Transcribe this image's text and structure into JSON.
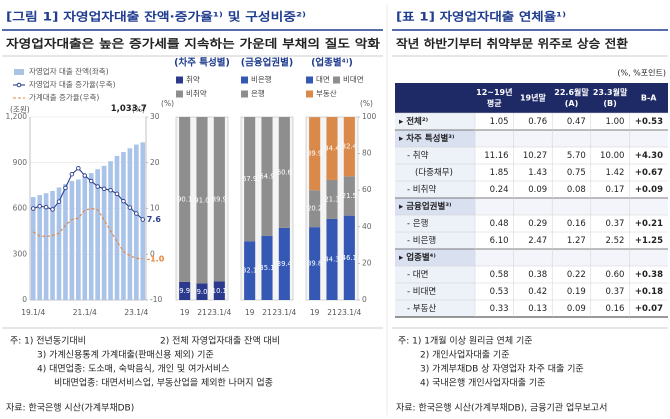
{
  "header_left": {
    "title": "[그림 1] 자영업자대출 잔액·증가율¹⁾ 및 구성비중²⁾",
    "subtitle": "자영업자대출은 높은 증가세를 지속하는 가운데 부채의 질도 악화"
  },
  "chart_data": [
    {
      "type": "bar_line",
      "ylabel": "(조원)",
      "y2label": "(%)",
      "categories": [
        "19.1/4",
        null,
        null,
        null,
        null,
        null,
        null,
        null,
        "21.1/4",
        null,
        null,
        null,
        null,
        null,
        null,
        null,
        "23.1/4",
        null
      ],
      "series": [
        {
          "name": "자영업자 대출 잔액(좌축)",
          "type": "bar",
          "color": "#a9c4e8",
          "values": [
            675,
            688,
            700,
            715,
            738,
            760,
            780,
            790,
            812,
            832,
            858,
            880,
            910,
            945,
            970,
            995,
            1019,
            1033.7
          ],
          "value_labels": [
            null,
            null,
            null,
            null,
            null,
            null,
            null,
            null,
            null,
            null,
            null,
            null,
            null,
            null,
            null,
            null,
            null,
            "1,033.7"
          ]
        },
        {
          "name": "자영업자 대출 증가율(우축)",
          "type": "line",
          "marker": "circle",
          "axis": "y2",
          "color": "#2e3f8f",
          "values": [
            10.0,
            10.5,
            10.3,
            9.8,
            11.5,
            14.5,
            17.5,
            18.8,
            17.2,
            16.0,
            14.8,
            14.3,
            14.0,
            13.2,
            11.6,
            10.2,
            8.9,
            7.6
          ],
          "value_labels": [
            null,
            null,
            null,
            null,
            null,
            null,
            null,
            null,
            null,
            null,
            null,
            null,
            null,
            null,
            null,
            null,
            null,
            "7.6"
          ]
        },
        {
          "name": "가계대출 증가율(우축)",
          "type": "line",
          "dashed": true,
          "axis": "y2",
          "color": "#e8833a",
          "values": [
            4.9,
            4.0,
            3.9,
            4.1,
            4.6,
            6.3,
            7.6,
            7.9,
            9.6,
            10.0,
            9.7,
            7.5,
            5.1,
            2.8,
            0.6,
            -0.3,
            -0.9,
            -1.0
          ],
          "value_labels": [
            null,
            null,
            null,
            null,
            null,
            null,
            null,
            null,
            null,
            null,
            null,
            null,
            null,
            null,
            null,
            null,
            null,
            "-1.0"
          ]
        }
      ],
      "ylim": [
        0,
        1200
      ],
      "yticks": [
        0,
        300,
        600,
        900,
        {
          "value": 1200,
          "label": "1,200"
        }
      ],
      "y2lim": [
        -10,
        30
      ],
      "y2ticks": [
        -10,
        0,
        10,
        20,
        30
      ],
      "grid": true
    },
    {
      "type": "stacked_bar",
      "title": "(차주 특성별)",
      "ylabel": "(%)",
      "categories": [
        "19",
        "21",
        "23.1/4"
      ],
      "series": [
        {
          "name": "취약",
          "color": "#2b3a8c",
          "values": [
            9.9,
            9.0,
            10.1
          ],
          "value_labels": [
            "9.9",
            "9.0",
            "10.1"
          ]
        },
        {
          "name": "비취약",
          "color": "#8e8e8e",
          "values": [
            90.1,
            91.0,
            89.9
          ],
          "value_labels": [
            "90.1",
            "91.0",
            "89.9"
          ]
        }
      ],
      "ylim": [
        0,
        100
      ]
    },
    {
      "type": "stacked_bar",
      "title": "(금융업권별)",
      "categories": [
        "19",
        "21",
        "23.1/4"
      ],
      "series": [
        {
          "name": "비은행",
          "color": "#3558b4",
          "values": [
            32.1,
            35.1,
            39.4
          ]
        },
        {
          "name": "은행",
          "color": "#8e8e8e",
          "values": [
            67.9,
            64.9,
            60.6
          ]
        }
      ],
      "ylim": [
        0,
        100
      ]
    },
    {
      "type": "stacked_bar",
      "title": "(업종별⁴⁾)",
      "ylabel": "(%)",
      "categories": [
        "19",
        "21",
        "23.1/4"
      ],
      "series": [
        {
          "name": "대면",
          "color": "#3558b4",
          "values": [
            39.8,
            44.3,
            46.1
          ]
        },
        {
          "name": "비대면",
          "color": "#8e8e8e",
          "values": [
            20.2,
            21.3,
            21.5
          ]
        },
        {
          "name": "부동산",
          "color": "#d9894a",
          "values": [
            39.9,
            34.4,
            32.4
          ]
        }
      ],
      "ylim": [
        0,
        100
      ],
      "yticks": [
        0,
        20,
        40,
        60,
        80,
        100
      ]
    }
  ],
  "notes_left": [
    "주: 1) 전년동기대비",
    "2) 전체 자영업자대출 잔액 대비",
    "3) 가계신용통계 가계대출(판매신용 제외) 기준",
    "4) 대면업종: 도소매, 숙박음식, 개인 및 여가서비스",
    "비대면업종: 대면서비스업, 부동산업을 제외한 나머지 업종",
    "자료: 한국은행 시산(가계부채DB)"
  ],
  "header_right": {
    "title": "[표 1] 자영업자대출 연체율¹⁾",
    "subtitle": "작년 하반기부터 취약부문 위주로 상승 전환"
  },
  "table": {
    "unit": "(%, %포인트)",
    "columns": [
      [
        "12~19년",
        "평균"
      ],
      [
        "19년말"
      ],
      [
        "22.6월말",
        "(A)"
      ],
      [
        "23.3월말",
        "(B)"
      ],
      [
        "B-A"
      ]
    ],
    "rows": [
      [
        "▸ 전체²⁾",
        "1.05",
        "0.76",
        "0.47",
        "1.00",
        "+0.53"
      ],
      [
        "▸ 차주 특성별³⁾"
      ],
      [
        "- 취약",
        "11.16",
        "10.27",
        "5.70",
        "10.00",
        "+4.30"
      ],
      [
        "(다중채무)",
        "1.85",
        "1.43",
        "0.75",
        "1.42",
        "+0.67"
      ],
      [
        "- 비취약",
        "0.24",
        "0.09",
        "0.08",
        "0.17",
        "+0.09"
      ],
      [
        "▸ 금융업권별³⁾"
      ],
      [
        "- 은행",
        "0.48",
        "0.29",
        "0.16",
        "0.37",
        "+0.21"
      ],
      [
        "- 비은행",
        "6.10",
        "2.47",
        "1.27",
        "2.52",
        "+1.25"
      ],
      [
        "▸ 업종별⁴⁾"
      ],
      [
        "- 대면",
        "0.58",
        "0.38",
        "0.22",
        "0.60",
        "+0.38"
      ],
      [
        "- 비대면",
        "0.53",
        "0.42",
        "0.19",
        "0.37",
        "+0.18"
      ],
      [
        "- 부동산",
        "0.33",
        "0.13",
        "0.09",
        "0.16",
        "+0.07"
      ]
    ]
  },
  "notes_right": [
    "주: 1) 1개월 이상 원리금 연체 기준",
    "2) 개인사업자대출 기준",
    "3) 가계부채DB 상 자영업자 차주 대출 기준",
    "4) 국내은행 개인사업자대출 기준",
    "자료: 한국은행 시산(가계부채DB), 금융기관 업무보고서"
  ]
}
